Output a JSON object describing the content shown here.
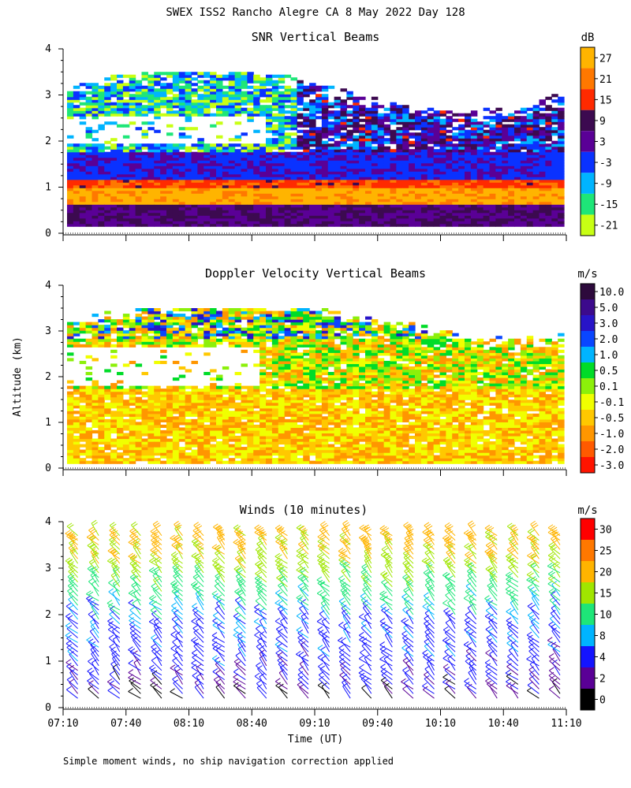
{
  "figure": {
    "title": "SWEX ISS2 Rancho Alegre CA   8 May 2022 Day 128",
    "ylabel": "Altitude (km)",
    "xlabel": "Time (UT)",
    "footnote": "Simple moment winds, no ship navigation correction applied",
    "x_ticks": [
      "07:10",
      "07:40",
      "08:10",
      "08:40",
      "09:10",
      "09:40",
      "10:10",
      "10:40",
      "11:10"
    ],
    "y_ticks": [
      "0",
      "1",
      "2",
      "3",
      "4"
    ]
  },
  "chart_data": [
    {
      "type": "heatmap",
      "title": "SNR Vertical Beams",
      "xlabel": "",
      "ylabel": "Altitude (km)",
      "xlim": [
        "07:10",
        "11:10"
      ],
      "ylim": [
        0,
        4
      ],
      "colorbar": {
        "unit": "dB",
        "ticks": [
          "27",
          "21",
          "15",
          "9",
          "3",
          "-3",
          "-9",
          "-15",
          "-21"
        ],
        "colors": [
          "#ffb400",
          "#ff7800",
          "#ff2a00",
          "#3c0a50",
          "#5a0096",
          "#0a32ff",
          "#00b4ff",
          "#1ee678",
          "#c8ff14"
        ]
      },
      "layers": [
        {
          "altitude_km": [
            0.15,
            0.6
          ],
          "snr_db_approx": 6,
          "description_range": "purple/dark"
        },
        {
          "altitude_km": [
            0.6,
            1.0
          ],
          "snr_db_approx": 27
        },
        {
          "altitude_km": [
            1.0,
            1.15
          ],
          "snr_db_approx": 18
        },
        {
          "altitude_km": [
            1.15,
            1.7
          ],
          "snr_db_approx": 0
        },
        {
          "altitude_km": [
            1.7,
            3.3
          ],
          "snr_db_approx": -12
        }
      ]
    },
    {
      "type": "heatmap",
      "title": "Doppler Velocity Vertical Beams",
      "xlabel": "",
      "ylabel": "Altitude (km)",
      "xlim": [
        "07:10",
        "11:10"
      ],
      "ylim": [
        0,
        4
      ],
      "colorbar": {
        "unit": "m/s",
        "ticks": [
          "10.0",
          "5.0",
          "3.0",
          "2.0",
          "1.0",
          "0.5",
          "0.1",
          "-0.1",
          "-0.5",
          "-1.0",
          "-2.0",
          "-3.0"
        ],
        "colors": [
          "#2d0a3c",
          "#3c0a8c",
          "#2814c8",
          "#0a46ff",
          "#00b4ff",
          "#00dc28",
          "#8cf00a",
          "#f0ff00",
          "#ffc800",
          "#ff9600",
          "#ff5a00",
          "#ff1400"
        ]
      },
      "layers": [
        {
          "altitude_km": [
            0.1,
            1.7
          ],
          "velocity_ms_approx": -0.5
        },
        {
          "altitude_km": [
            1.7,
            3.4
          ],
          "velocity_ms_approx": 0.1
        }
      ]
    },
    {
      "type": "scatter",
      "title": "Winds (10 minutes)",
      "xlabel": "Time (UT)",
      "ylabel": "Altitude (km)",
      "xlim": [
        "07:10",
        "11:10"
      ],
      "ylim": [
        0,
        4
      ],
      "marks": "wind barbs",
      "colorbar": {
        "unit": "m/s",
        "ticks": [
          "30",
          "25",
          "20",
          "15",
          "10",
          "8",
          "4",
          "2",
          "0"
        ],
        "colors": [
          "#ff0000",
          "#ff7800",
          "#ffb400",
          "#a0e600",
          "#1ee678",
          "#00b4ff",
          "#1414ff",
          "#5a0096",
          "#000000"
        ]
      },
      "profile_times": [
        "07:10",
        "07:20",
        "07:30",
        "07:40",
        "07:50",
        "08:00",
        "08:10",
        "08:20",
        "08:30",
        "08:40",
        "08:50",
        "09:00",
        "09:10",
        "09:20",
        "09:30",
        "09:40",
        "09:50",
        "10:00",
        "10:10",
        "10:20",
        "10:30",
        "10:40",
        "10:50",
        "11:00"
      ],
      "speed_profile_ms": [
        {
          "altitude_km": 0.3,
          "speed": 3
        },
        {
          "altitude_km": 1.0,
          "speed": 6
        },
        {
          "altitude_km": 1.8,
          "speed": 7
        },
        {
          "altitude_km": 2.4,
          "speed": 12
        },
        {
          "altitude_km": 3.0,
          "speed": 18
        },
        {
          "altitude_km": 3.6,
          "speed": 22
        }
      ]
    }
  ]
}
